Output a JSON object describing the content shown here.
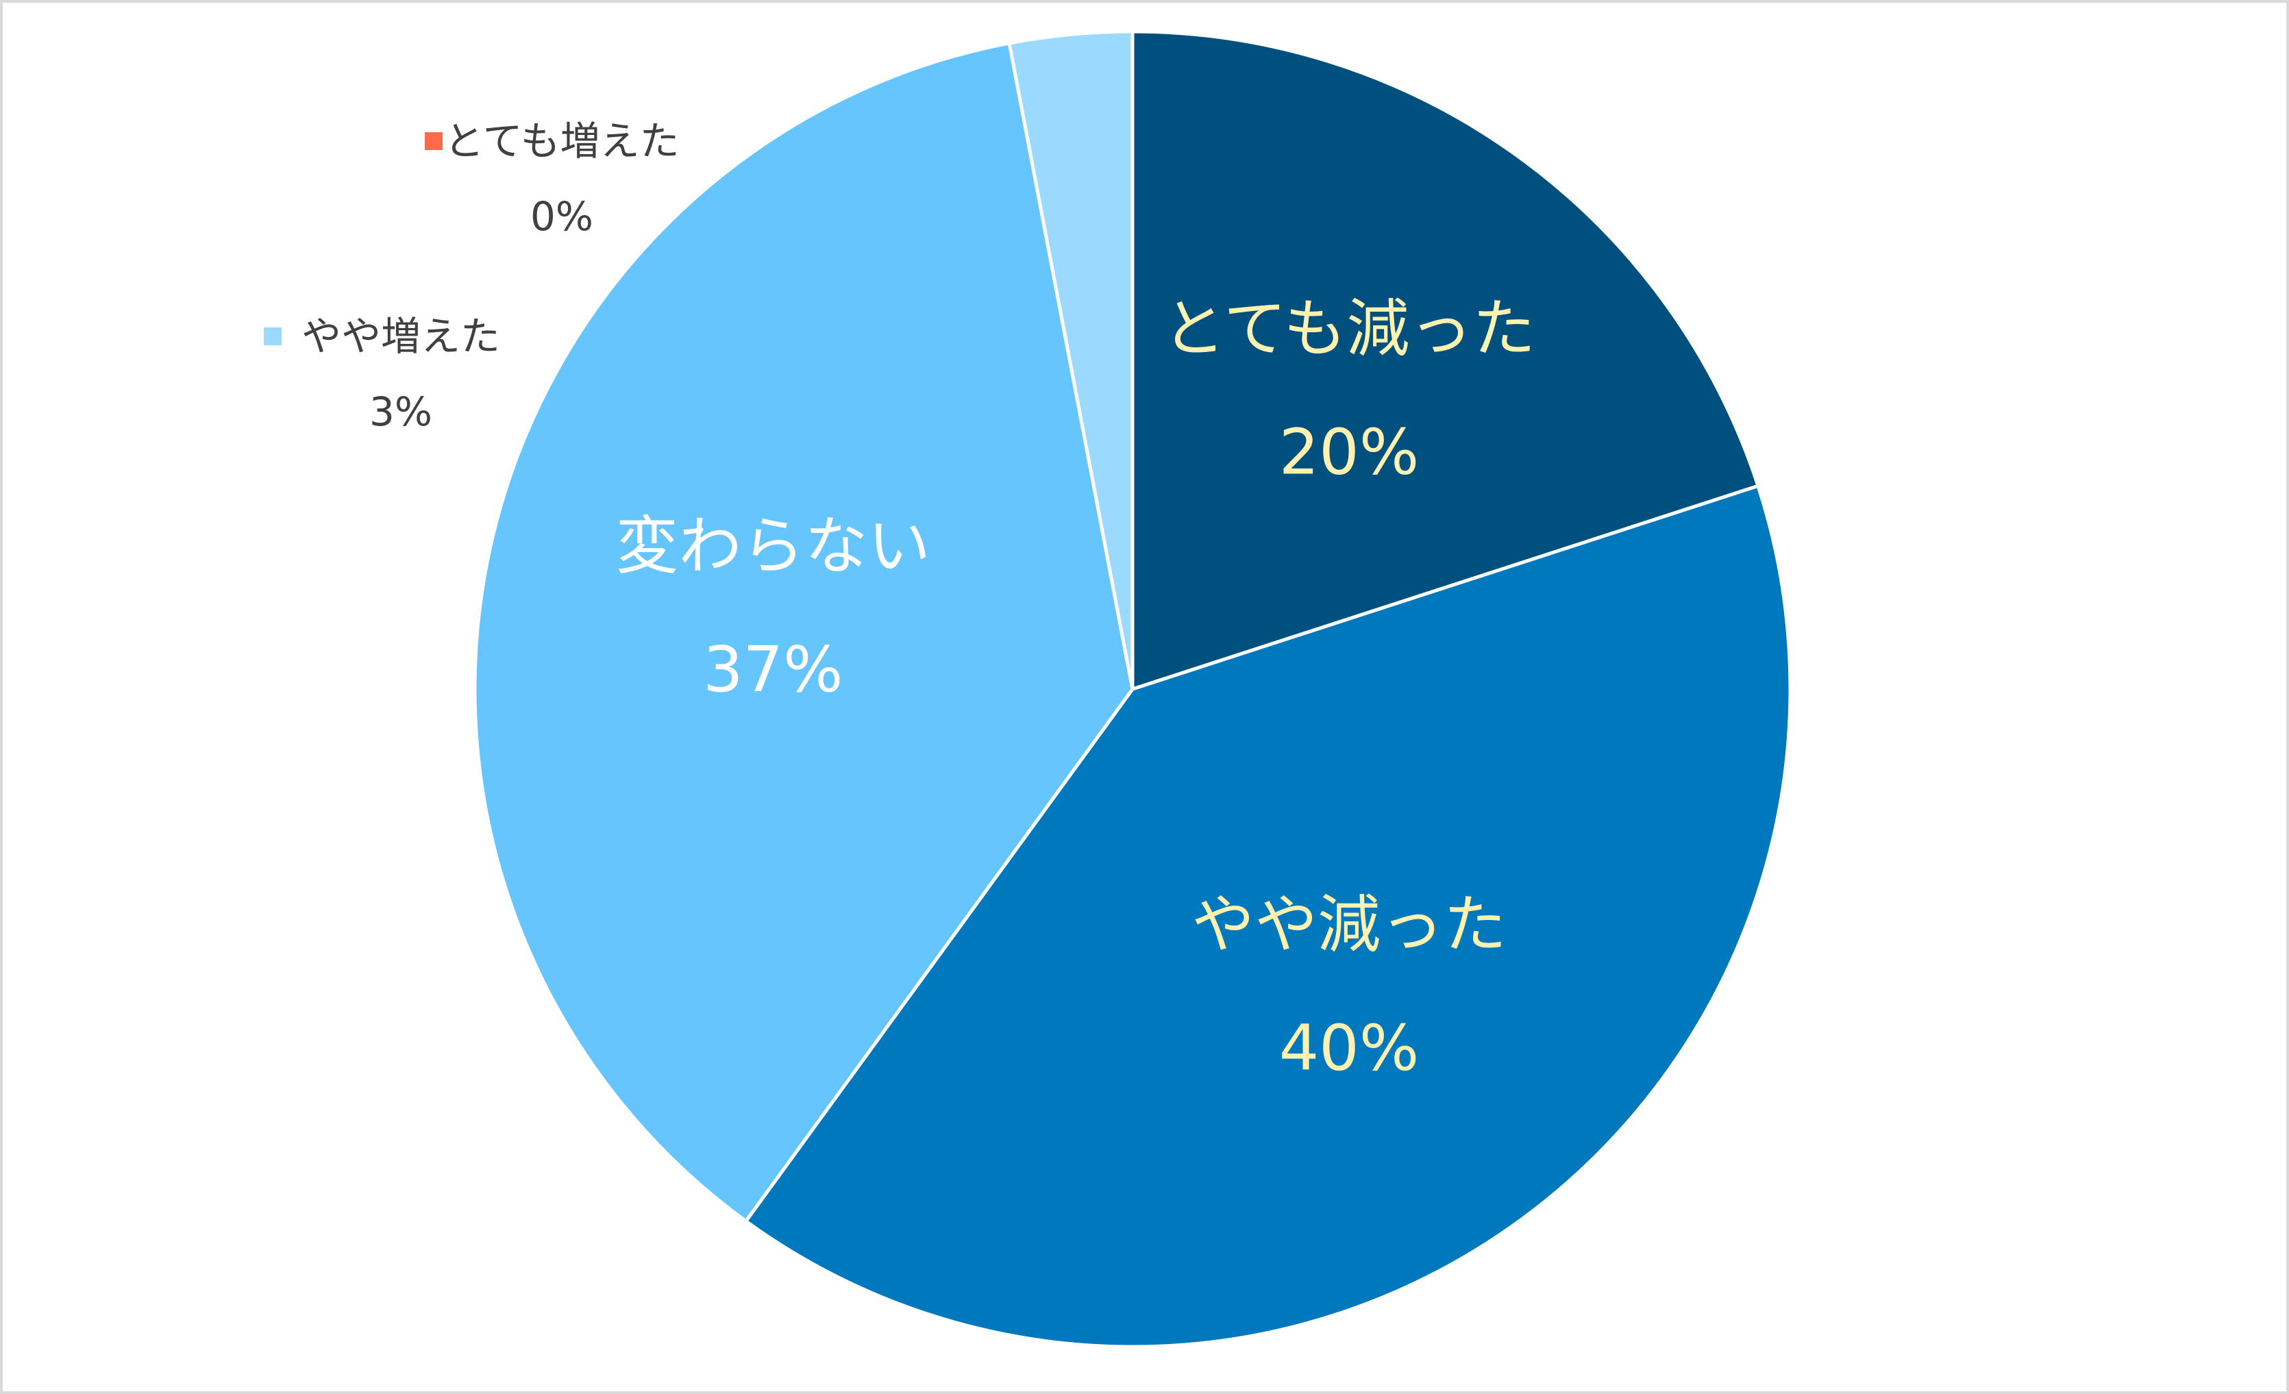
{
  "chart_data": {
    "type": "pie",
    "categories": [
      "とても減った",
      "やや減った",
      "変わらない",
      "やや増えた",
      "とても増えた"
    ],
    "values": [
      20,
      40,
      37,
      3,
      0
    ],
    "value_labels": [
      "20%",
      "40%",
      "37%",
      "3%",
      "0%"
    ],
    "colors": [
      "#00507f",
      "#0078bd",
      "#66c5fd",
      "#9bd9fe",
      "#ff6a4d"
    ],
    "label_colors": [
      "#fff2b0",
      "#fff2b0",
      "#ffffff",
      "#404040",
      "#404040"
    ],
    "start_angle": 0,
    "direction": "clockwise"
  }
}
